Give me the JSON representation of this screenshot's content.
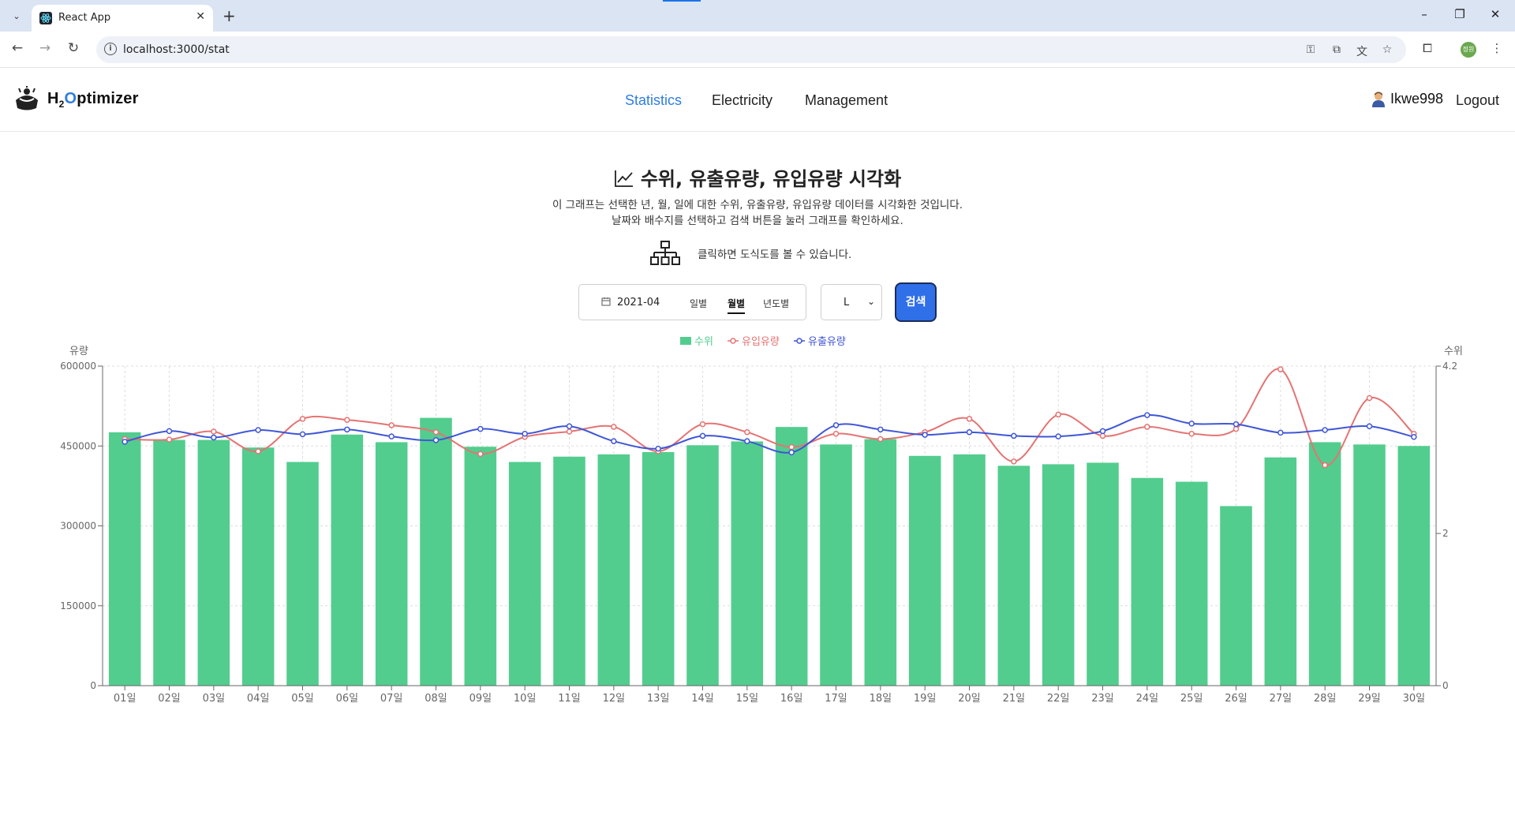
{
  "browser": {
    "tab_title": "React App",
    "url": "localhost:3000/stat",
    "profile_initials": "정원"
  },
  "app": {
    "brand_h": "H",
    "brand_sub": "2",
    "brand_o": "O",
    "brand_rest": "ptimizer",
    "nav": [
      "Statistics",
      "Electricity",
      "Management"
    ],
    "active_nav": "Statistics",
    "username": "Ikwe998",
    "logout": "Logout"
  },
  "page": {
    "title": "수위, 유출유량, 유입유량 시각화",
    "desc1": "이 그래프는 선택한 년, 월, 일에 대한 수위, 유출유량, 유입유량 데이터를 시각화한 것입니다.",
    "desc2": "날짜와 배수지를 선택하고 검색 버튼을 눌러 그래프를 확인하세요.",
    "diagram_hint": "클릭하면 도식도를 볼 수 있습니다."
  },
  "controls": {
    "date_value": "2021-04",
    "modes": [
      "일별",
      "월별",
      "년도별"
    ],
    "active_mode": "월별",
    "reservoir": "L",
    "search_label": "검색"
  },
  "colors": {
    "level": "#52cd8e",
    "inflow": "#e57373",
    "outflow": "#3f56d6",
    "accent": "#2f7de1"
  },
  "chart_data": {
    "type": "bar",
    "categories": [
      "01일",
      "02일",
      "03일",
      "04일",
      "05일",
      "06일",
      "07일",
      "08일",
      "09일",
      "10일",
      "11일",
      "12일",
      "13일",
      "14일",
      "15일",
      "16일",
      "17일",
      "18일",
      "19일",
      "20일",
      "21일",
      "22일",
      "23일",
      "24일",
      "25일",
      "26일",
      "27일",
      "28일",
      "29일",
      "30일"
    ],
    "left_axis": {
      "label": "유량",
      "ticks": [
        0,
        150000,
        300000,
        450000,
        600000
      ],
      "range": [
        0,
        600000
      ]
    },
    "right_axis": {
      "label": "수위",
      "ticks": [
        0,
        2,
        4.2
      ],
      "range": [
        0,
        4.2
      ]
    },
    "legend": [
      "수위",
      "유입유량",
      "유출유량"
    ],
    "series": [
      {
        "name": "수위",
        "type": "bar",
        "axis": "right",
        "values": [
          3.33,
          3.23,
          3.23,
          3.13,
          2.94,
          3.3,
          3.2,
          3.52,
          3.14,
          2.94,
          3.01,
          3.04,
          3.07,
          3.16,
          3.21,
          3.4,
          3.17,
          3.24,
          3.02,
          3.04,
          2.89,
          2.91,
          2.93,
          2.73,
          2.68,
          2.36,
          3.0,
          3.2,
          3.17,
          3.15
        ]
      },
      {
        "name": "유입유량",
        "type": "line",
        "axis": "left",
        "values": [
          463000,
          462000,
          477000,
          440000,
          501000,
          499000,
          489000,
          476000,
          435000,
          467000,
          477000,
          486000,
          440000,
          491000,
          476000,
          448000,
          473000,
          463000,
          476000,
          501000,
          421000,
          509000,
          469000,
          486000,
          473000,
          482000,
          594000,
          414000,
          540000,
          473000
        ]
      },
      {
        "name": "유출유량",
        "type": "line",
        "axis": "left",
        "values": [
          458000,
          478000,
          466000,
          480000,
          472000,
          481000,
          468000,
          461000,
          482000,
          473000,
          487000,
          459000,
          445000,
          469000,
          459000,
          438000,
          489000,
          481000,
          471000,
          476000,
          469000,
          468000,
          478000,
          508000,
          492000,
          491000,
          475000,
          480000,
          487000,
          467000
        ]
      }
    ]
  }
}
